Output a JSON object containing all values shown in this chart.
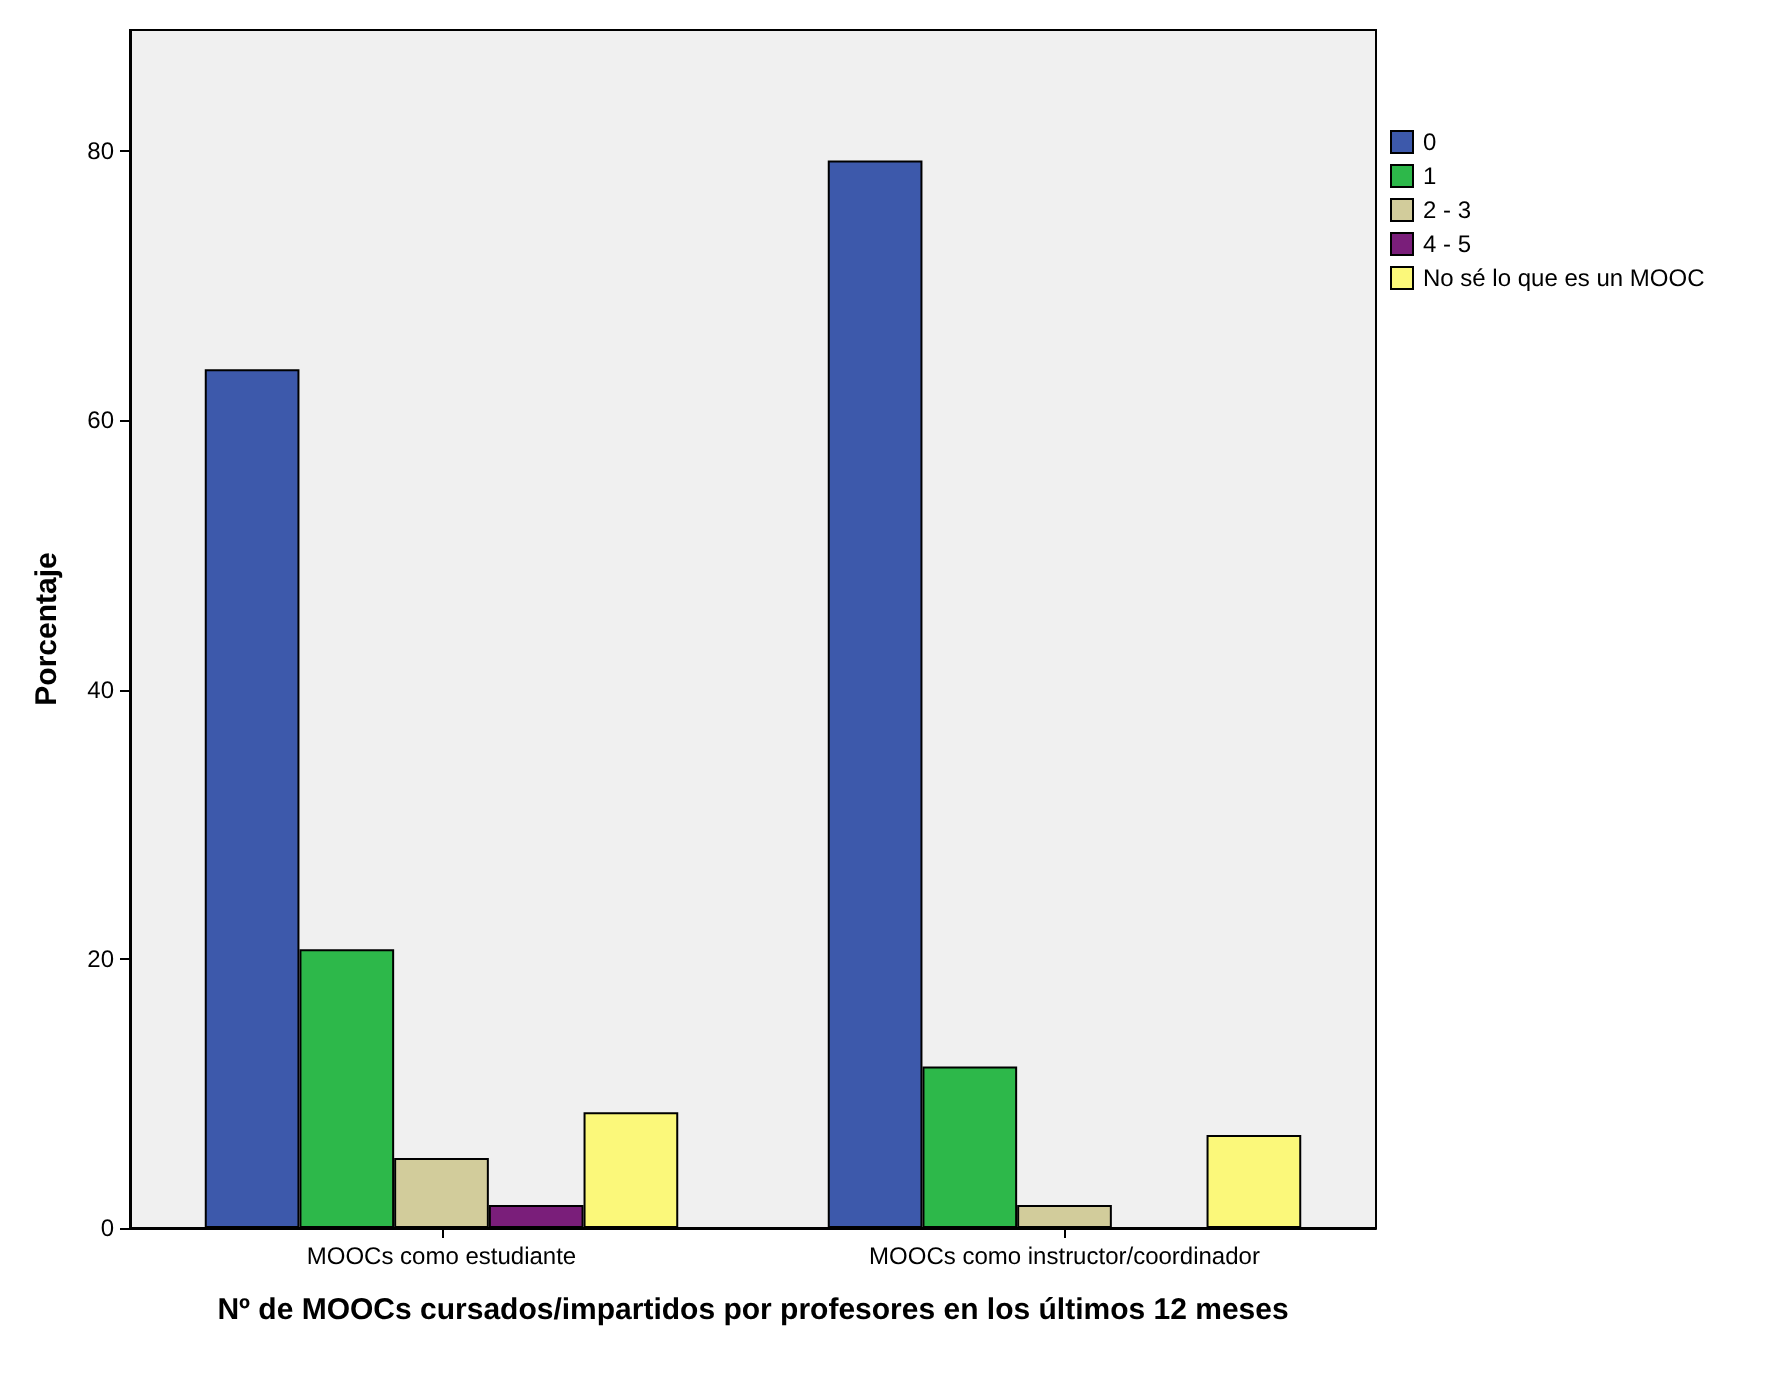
{
  "chart_data": {
    "type": "bar",
    "xlabel": "Nº de MOOCs cursados/impartidos por profesores en los últimos 12 meses",
    "ylabel": "Porcentaje",
    "categories": [
      "MOOCs como estudiante",
      "MOOCs como instructor/coordinador"
    ],
    "series": [
      {
        "name": "0",
        "color": "#3d59ab",
        "values": [
          63.8,
          79.3
        ]
      },
      {
        "name": "1",
        "color": "#2db84a",
        "values": [
          20.7,
          12.0
        ]
      },
      {
        "name": "2 - 3",
        "color": "#d2cc9b",
        "values": [
          5.2,
          1.7
        ]
      },
      {
        "name": "4 - 5",
        "color": "#7a1e7a",
        "values": [
          1.7,
          null
        ]
      },
      {
        "name": "No sé lo que es un MOOC",
        "color": "#fbf87a",
        "values": [
          8.6,
          6.9
        ]
      }
    ],
    "ylim": [
      0,
      89
    ],
    "yticks": [
      0,
      20,
      40,
      60,
      80
    ],
    "grid": false,
    "legend": "right"
  }
}
